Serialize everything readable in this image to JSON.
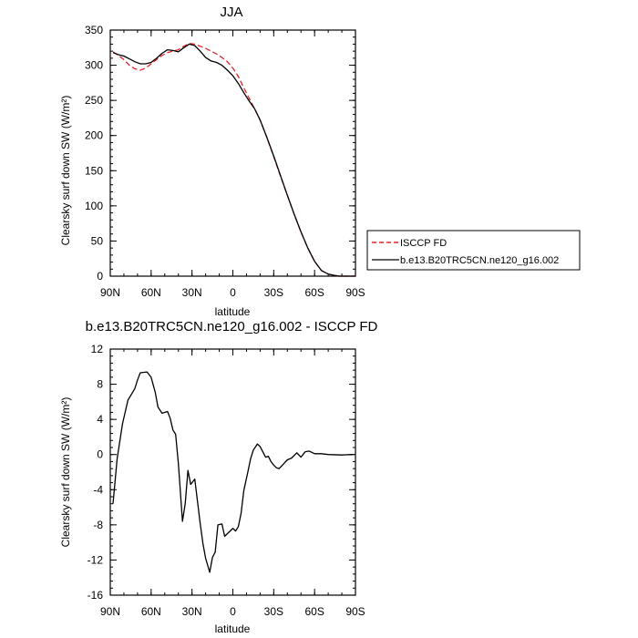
{
  "chart_data": [
    {
      "type": "line",
      "title": "JJA",
      "xlabel": "latitude",
      "ylabel": "Clearsky surf down SW (W/m²)",
      "xlim": [
        90,
        -90
      ],
      "ylim": [
        0,
        350
      ],
      "x_ticks": [
        {
          "value": 90,
          "label": "90N"
        },
        {
          "value": 60,
          "label": "60N"
        },
        {
          "value": 30,
          "label": "30N"
        },
        {
          "value": 0,
          "label": "0"
        },
        {
          "value": -30,
          "label": "30S"
        },
        {
          "value": -60,
          "label": "60S"
        },
        {
          "value": -90,
          "label": "90S"
        }
      ],
      "y_ticks": [
        0,
        50,
        100,
        150,
        200,
        250,
        300,
        350
      ],
      "legend_position": "right",
      "series": [
        {
          "name": "ISCCP FD",
          "color": "#e8242a",
          "dash": "dashed",
          "x": [
            88,
            84,
            80,
            76,
            72,
            68,
            64,
            60,
            56,
            52,
            48,
            44,
            40,
            36,
            32,
            28,
            24,
            20,
            16,
            12,
            8,
            4,
            0,
            -4,
            -8,
            -12,
            -16,
            -20,
            -25,
            -30,
            -35,
            -40,
            -45,
            -50,
            -55,
            -60,
            -65,
            -70,
            -75,
            -78,
            -82,
            -86,
            -90
          ],
          "y": [
            319,
            314,
            308,
            300,
            295,
            293,
            296,
            302,
            308,
            314,
            318,
            320,
            322,
            327,
            331,
            330,
            327,
            324,
            320,
            316,
            311,
            305,
            296,
            284,
            268,
            253,
            238,
            222,
            197,
            170,
            142,
            115,
            88,
            63,
            40,
            21,
            8,
            3,
            1,
            0,
            0,
            0,
            0
          ]
        },
        {
          "name": "b.e13.B20TRC5CN.ne120_g16.002",
          "color": "#000000",
          "dash": "solid",
          "x": [
            88,
            84,
            80,
            76,
            72,
            68,
            64,
            60,
            56,
            52,
            48,
            44,
            40,
            36,
            32,
            28,
            24,
            20,
            16,
            12,
            8,
            4,
            0,
            -4,
            -8,
            -12,
            -16,
            -20,
            -25,
            -30,
            -35,
            -40,
            -45,
            -50,
            -55,
            -60,
            -65,
            -70,
            -75,
            -78,
            -82,
            -86,
            -90
          ],
          "y": [
            318,
            315,
            313,
            309,
            305,
            302,
            302,
            304,
            310,
            317,
            322,
            321,
            319,
            325,
            330,
            328,
            320,
            311,
            306,
            304,
            300,
            293,
            285,
            274,
            261,
            249,
            238,
            222,
            197,
            171,
            143,
            115,
            88,
            63,
            40,
            21,
            8,
            3,
            1,
            0,
            0,
            0,
            0
          ]
        }
      ]
    },
    {
      "type": "line",
      "title": "b.e13.B20TRC5CN.ne120_g16.002 - ISCCP FD",
      "xlabel": "latitude",
      "ylabel": "Clearsky surf down SW (W/m²)",
      "xlim": [
        90,
        -90
      ],
      "ylim": [
        -16,
        12
      ],
      "x_ticks": [
        {
          "value": 90,
          "label": "90N"
        },
        {
          "value": 60,
          "label": "60N"
        },
        {
          "value": 30,
          "label": "30N"
        },
        {
          "value": 0,
          "label": "0"
        },
        {
          "value": -30,
          "label": "30S"
        },
        {
          "value": -60,
          "label": "60S"
        },
        {
          "value": -90,
          "label": "90S"
        }
      ],
      "y_ticks": [
        -16,
        -12,
        -8,
        -4,
        0,
        4,
        8,
        12
      ],
      "series": [
        {
          "color": "#000000",
          "dash": "solid",
          "x": [
            88,
            85,
            81,
            77,
            72,
            70,
            68,
            63,
            60,
            57,
            55,
            52,
            48,
            46,
            44,
            42,
            40,
            37,
            35,
            33,
            31,
            28,
            24,
            22,
            20,
            17,
            15,
            13,
            11,
            8,
            6,
            4,
            2,
            0,
            -2,
            -4,
            -6,
            -8,
            -11,
            -13,
            -15,
            -18,
            -20,
            -22,
            -24,
            -26,
            -28,
            -30,
            -32,
            -34,
            -37,
            -40,
            -43,
            -47,
            -50,
            -53,
            -56,
            -60,
            -65,
            -70,
            -80,
            -88
          ],
          "y": [
            -5.6,
            -0.5,
            3.5,
            6.2,
            7.5,
            8.5,
            9.3,
            9.4,
            8.8,
            7.1,
            5.4,
            4.7,
            4.9,
            4.1,
            2.8,
            2.3,
            -1.0,
            -7.6,
            -5.6,
            -1.8,
            -3.4,
            -2.8,
            -7.8,
            -10.1,
            -11.8,
            -13.4,
            -11.7,
            -11.1,
            -8.0,
            -7.9,
            -9.3,
            -9.0,
            -8.7,
            -8.4,
            -8.7,
            -8.2,
            -6.7,
            -4.1,
            -2.0,
            -0.5,
            0.5,
            1.2,
            0.9,
            0.3,
            -0.3,
            -0.2,
            -0.8,
            -1.2,
            -1.5,
            -1.6,
            -1.1,
            -0.6,
            -0.4,
            0.2,
            -0.3,
            0.3,
            0.4,
            0.1,
            0.1,
            0.0,
            -0.05,
            0.0
          ]
        }
      ]
    }
  ]
}
